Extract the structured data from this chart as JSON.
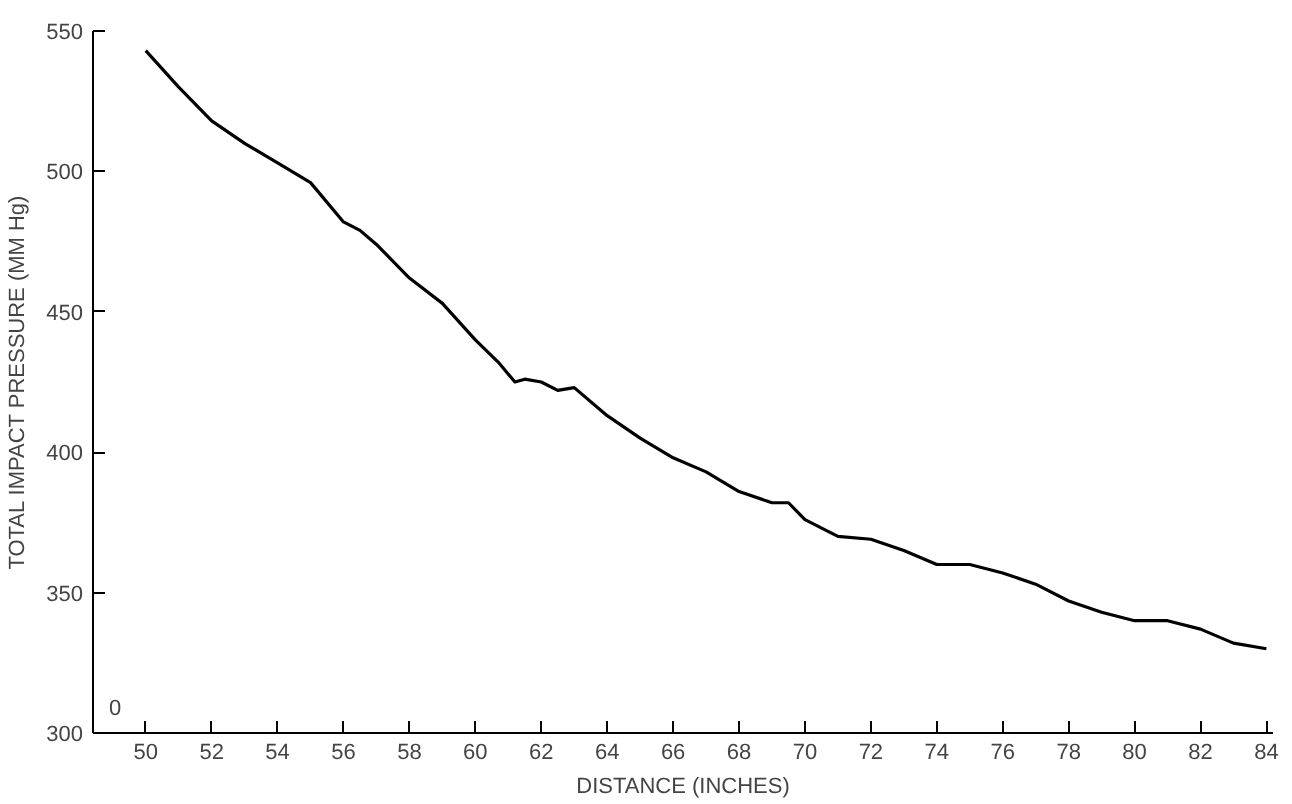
{
  "chart_data": {
    "type": "line",
    "xlabel": "DISTANCE (INCHES)",
    "ylabel": "TOTAL IMPACT PRESSURE (MM Hg)",
    "x": [
      50,
      51,
      52,
      53,
      54,
      55,
      56,
      56.5,
      57,
      58,
      59,
      60,
      60.7,
      61.2,
      61.5,
      62,
      62.5,
      63,
      64,
      65,
      66,
      67,
      68,
      69,
      69.5,
      70,
      71,
      72,
      73,
      74,
      75,
      76,
      77,
      78,
      79,
      80,
      81,
      82,
      83,
      84
    ],
    "series": [
      {
        "color": "#000000",
        "values": [
          543,
          530,
          518,
          510,
          503,
          496,
          482,
          479,
          474,
          462,
          453,
          440,
          432,
          425,
          426,
          425,
          422,
          423,
          413,
          405,
          398,
          393,
          386,
          382,
          382,
          376,
          370,
          369,
          365,
          360,
          360,
          357,
          353,
          347,
          343,
          340,
          340,
          337,
          332,
          330
        ]
      }
    ],
    "xlim": [
      48.4,
      84.2
    ],
    "ylim": [
      300,
      550
    ],
    "xticks": [
      50,
      52,
      54,
      56,
      58,
      60,
      62,
      64,
      66,
      68,
      70,
      72,
      74,
      76,
      78,
      80,
      82,
      84
    ],
    "yticks": [
      300,
      350,
      400,
      450,
      500,
      550
    ],
    "annotations": [
      "0"
    ],
    "grid": false,
    "line_style": "solid",
    "marker": "none"
  }
}
